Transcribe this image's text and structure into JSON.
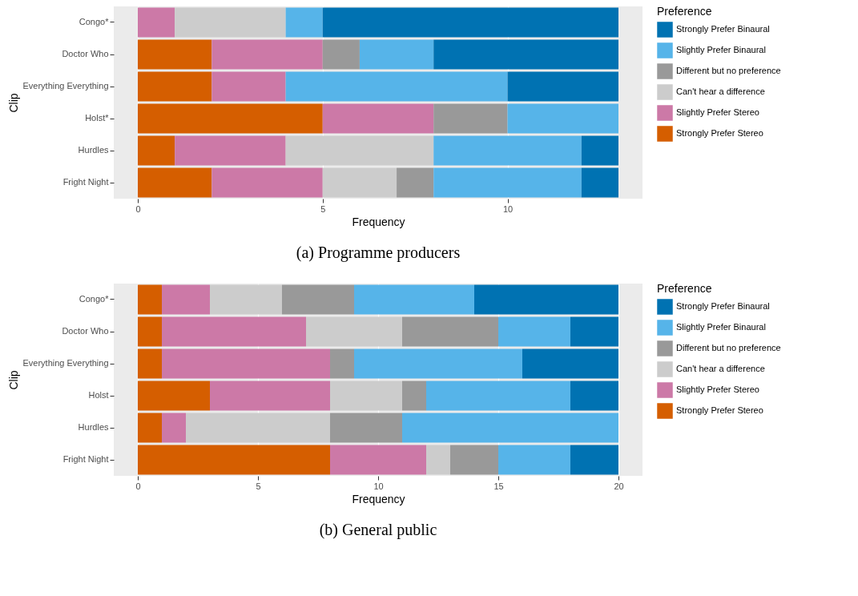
{
  "chart_data": [
    {
      "type": "bar",
      "orientation": "horizontal",
      "stacked": true,
      "title": "(a) Programme producers",
      "xlabel": "Frequency",
      "ylabel": "Clip",
      "legend_title": "Preference",
      "legend": "right",
      "grid": "x",
      "xlim": [
        -0.65,
        13.65
      ],
      "xticks": [
        0,
        5,
        10
      ],
      "categories": [
        "Congo*",
        "Doctor Who",
        "Everything Everything",
        "Holst*",
        "Hurdles",
        "Fright Night"
      ],
      "series": [
        {
          "name": "Strongly Prefer Stereo",
          "color": "#d55e00",
          "values": [
            0,
            2,
            2,
            5,
            1,
            2
          ]
        },
        {
          "name": "Slightly Prefer Stereo",
          "color": "#cc79a7",
          "values": [
            1,
            3,
            2,
            3,
            3,
            3
          ]
        },
        {
          "name": "Can't hear a difference",
          "color": "#cccccc",
          "values": [
            3,
            0,
            0,
            0,
            4,
            2
          ]
        },
        {
          "name": "Different but no preference",
          "color": "#999999",
          "values": [
            0,
            1,
            0,
            2,
            0,
            1
          ]
        },
        {
          "name": "Slightly Prefer Binaural",
          "color": "#56b4e9",
          "values": [
            1,
            2,
            6,
            3,
            4,
            4
          ]
        },
        {
          "name": "Strongly Prefer Binaural",
          "color": "#0072b2",
          "values": [
            8,
            5,
            3,
            0,
            1,
            1
          ]
        }
      ]
    },
    {
      "type": "bar",
      "orientation": "horizontal",
      "stacked": true,
      "title": "(b) General public",
      "xlabel": "Frequency",
      "ylabel": "Clip",
      "legend_title": "Preference",
      "legend": "right",
      "grid": "x",
      "xlim": [
        -1,
        21
      ],
      "xticks": [
        0,
        5,
        10,
        15,
        20
      ],
      "categories": [
        "Congo*",
        "Doctor Who",
        "Everything Everything",
        "Holst",
        "Hurdles",
        "Fright Night"
      ],
      "series": [
        {
          "name": "Strongly Prefer Stereo",
          "color": "#d55e00",
          "values": [
            1,
            1,
            1,
            3,
            1,
            8
          ]
        },
        {
          "name": "Slightly Prefer Stereo",
          "color": "#cc79a7",
          "values": [
            2,
            6,
            7,
            5,
            1,
            4
          ]
        },
        {
          "name": "Can't hear a difference",
          "color": "#cccccc",
          "values": [
            3,
            4,
            0,
            3,
            6,
            1
          ]
        },
        {
          "name": "Different but no preference",
          "color": "#999999",
          "values": [
            3,
            4,
            1,
            1,
            3,
            2
          ]
        },
        {
          "name": "Slightly Prefer Binaural",
          "color": "#56b4e9",
          "values": [
            5,
            3,
            7,
            6,
            9,
            3
          ]
        },
        {
          "name": "Strongly Prefer Binaural",
          "color": "#0072b2",
          "values": [
            6,
            2,
            4,
            2,
            0,
            2
          ]
        }
      ]
    }
  ]
}
